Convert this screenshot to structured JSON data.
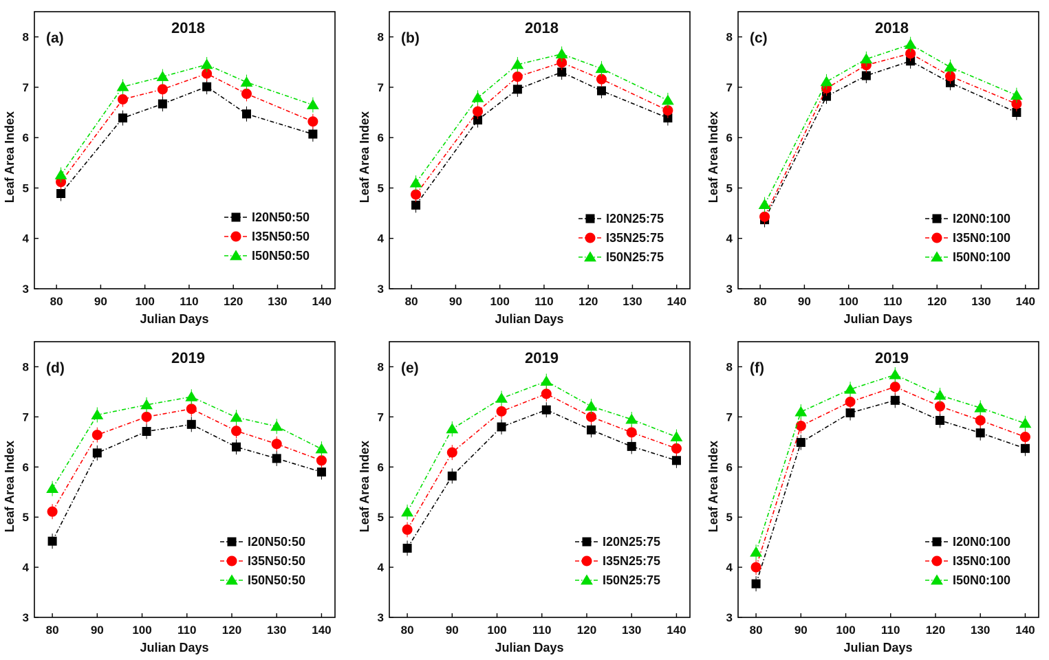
{
  "chart_data": [
    {
      "panel": "(a)",
      "title": "2018",
      "type": "line",
      "xlabel": "Julian Days",
      "ylabel": "Leaf Area Index",
      "xlim": [
        75,
        143
      ],
      "ylim": [
        3,
        8.5
      ],
      "xticks": [
        "80",
        "90",
        "100",
        "110",
        "120",
        "130",
        "140"
      ],
      "yticks": [
        "3",
        "4",
        "5",
        "6",
        "7",
        "8"
      ],
      "x": [
        81,
        95,
        104,
        114,
        123,
        138
      ],
      "series": [
        {
          "name": "I20N50:50",
          "values": [
            4.89,
            6.39,
            6.67,
            7.01,
            6.47,
            6.07
          ]
        },
        {
          "name": "I35N50:50",
          "values": [
            5.12,
            6.76,
            6.96,
            7.27,
            6.87,
            6.32
          ]
        },
        {
          "name": "I50N50:50",
          "values": [
            5.26,
            7.01,
            7.21,
            7.45,
            7.1,
            6.65
          ]
        }
      ]
    },
    {
      "panel": "(b)",
      "title": "2018",
      "type": "line",
      "xlabel": "Julian Days",
      "ylabel": "Leaf Area Index",
      "xlim": [
        75,
        143
      ],
      "ylim": [
        3,
        8.5
      ],
      "xticks": [
        "80",
        "90",
        "100",
        "110",
        "120",
        "130",
        "140"
      ],
      "yticks": [
        "3",
        "4",
        "5",
        "6",
        "7",
        "8"
      ],
      "x": [
        81,
        95,
        104,
        114,
        123,
        138
      ],
      "series": [
        {
          "name": "I20N25:75",
          "values": [
            4.66,
            6.35,
            6.96,
            7.3,
            6.93,
            6.39
          ]
        },
        {
          "name": "I35N25:75",
          "values": [
            4.87,
            6.52,
            7.21,
            7.49,
            7.16,
            6.54
          ]
        },
        {
          "name": "I50N25:75",
          "values": [
            5.1,
            6.79,
            7.45,
            7.66,
            7.37,
            6.74
          ]
        }
      ]
    },
    {
      "panel": "(c)",
      "title": "2018",
      "type": "line",
      "xlabel": "Julian Days",
      "ylabel": "Leaf Area Index",
      "xlim": [
        75,
        143
      ],
      "ylim": [
        3,
        8.5
      ],
      "xticks": [
        "80",
        "90",
        "100",
        "110",
        "120",
        "130",
        "140"
      ],
      "yticks": [
        "3",
        "4",
        "5",
        "6",
        "7",
        "8"
      ],
      "x": [
        81,
        95,
        104,
        114,
        123,
        138
      ],
      "series": [
        {
          "name": "I20N0:100",
          "values": [
            4.37,
            6.82,
            7.23,
            7.52,
            7.09,
            6.5
          ]
        },
        {
          "name": "I35N0:100",
          "values": [
            4.43,
            6.98,
            7.44,
            7.67,
            7.22,
            6.67
          ]
        },
        {
          "name": "I50N0:100",
          "values": [
            4.67,
            7.11,
            7.56,
            7.85,
            7.4,
            6.84
          ]
        }
      ]
    },
    {
      "panel": "(d)",
      "title": "2019",
      "type": "line",
      "xlabel": "Julian Days",
      "ylabel": "Leaf Area Index",
      "xlim": [
        76,
        143
      ],
      "ylim": [
        3,
        8.5
      ],
      "xticks": [
        "80",
        "90",
        "100",
        "110",
        "120",
        "130",
        "140"
      ],
      "yticks": [
        "3",
        "4",
        "5",
        "6",
        "7",
        "8"
      ],
      "x": [
        80,
        90,
        101,
        111,
        121,
        130,
        140
      ],
      "series": [
        {
          "name": "I20N50:50",
          "values": [
            4.52,
            6.28,
            6.71,
            6.85,
            6.4,
            6.17,
            5.9
          ]
        },
        {
          "name": "I35N50:50",
          "values": [
            5.11,
            6.64,
            7.0,
            7.16,
            6.72,
            6.46,
            6.13
          ]
        },
        {
          "name": "I50N50:50",
          "values": [
            5.57,
            7.04,
            7.24,
            7.4,
            6.99,
            6.81,
            6.36
          ]
        }
      ]
    },
    {
      "panel": "(e)",
      "title": "2019",
      "type": "line",
      "xlabel": "Julian Days",
      "ylabel": "Leaf Area Index",
      "xlim": [
        76,
        143
      ],
      "ylim": [
        3,
        8.5
      ],
      "xticks": [
        "80",
        "90",
        "100",
        "110",
        "120",
        "130",
        "140"
      ],
      "yticks": [
        "3",
        "4",
        "5",
        "6",
        "7",
        "8"
      ],
      "x": [
        80,
        90,
        101,
        111,
        121,
        130,
        140
      ],
      "series": [
        {
          "name": "I20N25:75",
          "values": [
            4.38,
            5.82,
            6.8,
            7.14,
            6.74,
            6.41,
            6.13
          ]
        },
        {
          "name": "I35N25:75",
          "values": [
            4.75,
            6.29,
            7.11,
            7.46,
            7.0,
            6.69,
            6.37
          ]
        },
        {
          "name": "I50N25:75",
          "values": [
            5.1,
            6.76,
            7.37,
            7.71,
            7.21,
            6.95,
            6.6
          ]
        }
      ]
    },
    {
      "panel": "(f)",
      "title": "2019",
      "type": "line",
      "xlabel": "Julian Days",
      "ylabel": "Leaf Area Index",
      "xlim": [
        76,
        143
      ],
      "ylim": [
        3,
        8.5
      ],
      "xticks": [
        "80",
        "90",
        "100",
        "110",
        "120",
        "130",
        "140"
      ],
      "yticks": [
        "3",
        "4",
        "5",
        "6",
        "7",
        "8"
      ],
      "x": [
        80,
        90,
        101,
        111,
        121,
        130,
        140
      ],
      "series": [
        {
          "name": "I20N0:100",
          "values": [
            3.67,
            6.49,
            7.08,
            7.33,
            6.93,
            6.68,
            6.37
          ]
        },
        {
          "name": "I35N0:100",
          "values": [
            4.0,
            6.82,
            7.3,
            7.6,
            7.21,
            6.93,
            6.6
          ]
        },
        {
          "name": "I50N0:100",
          "values": [
            4.3,
            7.1,
            7.55,
            7.84,
            7.43,
            7.18,
            6.87
          ]
        }
      ]
    }
  ],
  "series_style": [
    {
      "marker": "square",
      "color": "#000000"
    },
    {
      "marker": "circle",
      "color": "#ff0000"
    },
    {
      "marker": "triangle",
      "color": "#00dd00"
    }
  ]
}
